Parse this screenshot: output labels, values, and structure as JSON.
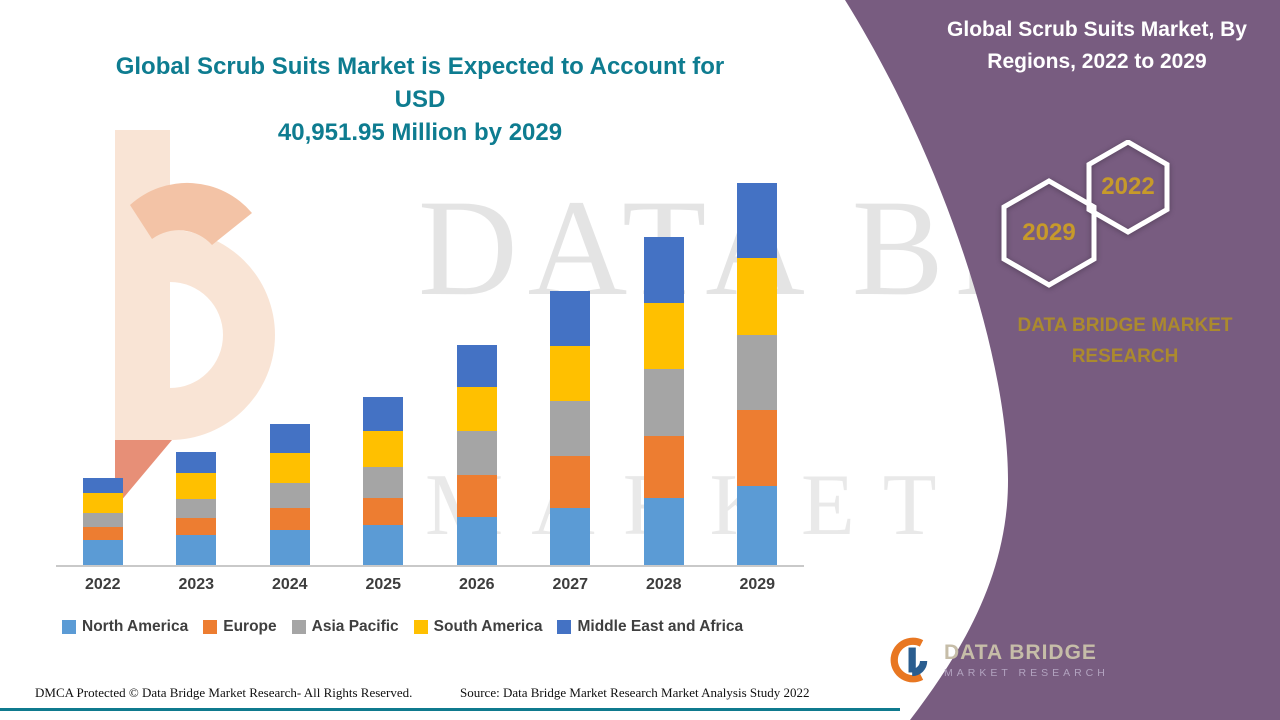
{
  "header": {
    "main_title_line1": "Global Scrub Suits Market is Expected to Account for USD",
    "main_title_line2": "40,951.95 Million by 2029"
  },
  "side_panel": {
    "panel_title_line1": "Global Scrub Suits Market, By",
    "panel_title_line2": "Regions, 2022 to 2029",
    "hexagons": [
      {
        "label": "2029"
      },
      {
        "label": "2022"
      }
    ],
    "brand_line1": "DATA BRIDGE MARKET",
    "brand_line2": "RESEARCH",
    "panel_color": "#785c80"
  },
  "watermark": {
    "line1": "DATA BRIDGE",
    "line2": "MARKET RESEARCH"
  },
  "chart_data": {
    "type": "bar",
    "stacked": true,
    "title": "Global Scrub Suits Market, By Regions, 2022 to 2029",
    "categories": [
      "2022",
      "2023",
      "2024",
      "2025",
      "2026",
      "2027",
      "2028",
      "2029"
    ],
    "series": [
      {
        "name": "North America",
        "color": "#5B9BD5",
        "values": [
          2680,
          3216,
          3752,
          4288,
          5146,
          6110,
          7182,
          8469
        ]
      },
      {
        "name": "Europe",
        "color": "#ED7D31",
        "values": [
          1394,
          1822,
          2358,
          2894,
          4502,
          5574,
          6646,
          8147
        ]
      },
      {
        "name": "Asia Pacific",
        "color": "#A5A5A5",
        "values": [
          1501,
          2037,
          2680,
          3323,
          4717,
          5896,
          7182,
          8040
        ]
      },
      {
        "name": "South America",
        "color": "#FFC000",
        "values": [
          2144,
          2787,
          3216,
          3859,
          4717,
          5896,
          7075,
          8254.95
        ]
      },
      {
        "name": "Middle East and Africa",
        "color": "#4472C4",
        "values": [
          1608,
          2251,
          3109,
          3645,
          4502,
          5896,
          7075,
          8041
        ]
      }
    ],
    "xlabel": "",
    "ylabel": "",
    "ylim": [
      0,
      41000
    ],
    "grid": false,
    "y_axis_visible": false,
    "legend_position": "bottom"
  },
  "footer": {
    "dmca": "DMCA Protected © Data Bridge Market Research- All Rights Reserved.",
    "source": "Source: Data Bridge Market Research Market Analysis Study 2022"
  },
  "logo": {
    "name": "DATA BRIDGE",
    "sub": "MARKET RESEARCH"
  },
  "colors": {
    "title_teal": "#0e7c90",
    "gold": "#c79a2a",
    "purple_panel": "#785c80",
    "teal_line": "#0f7a8e"
  }
}
